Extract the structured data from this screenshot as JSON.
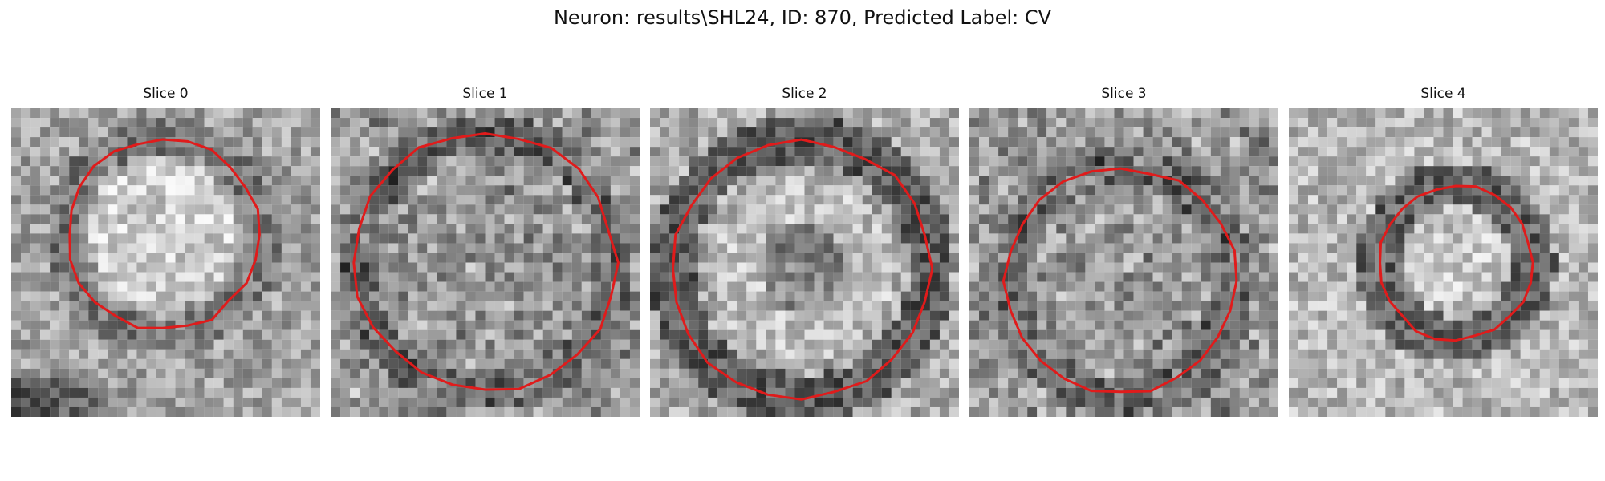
{
  "figure": {
    "title": "Neuron: results\\SHL24, ID: 870, Predicted Label: CV",
    "contour_color": "#e01b1b",
    "panels": [
      {
        "title": "Slice 0",
        "contour_radius": 0.31,
        "center": [
          0.49,
          0.41
        ],
        "pattern": "bright-center"
      },
      {
        "title": "Slice 1",
        "contour_radius": 0.42,
        "center": [
          0.5,
          0.5
        ],
        "pattern": "mixed-dark"
      },
      {
        "title": "Slice 2",
        "contour_radius": 0.42,
        "center": [
          0.49,
          0.52
        ],
        "pattern": "dark-core"
      },
      {
        "title": "Slice 3",
        "contour_radius": 0.37,
        "center": [
          0.49,
          0.56
        ],
        "pattern": "mixed-dark"
      },
      {
        "title": "Slice 4",
        "contour_radius": 0.25,
        "center": [
          0.54,
          0.5
        ],
        "pattern": "small-ring"
      }
    ]
  }
}
